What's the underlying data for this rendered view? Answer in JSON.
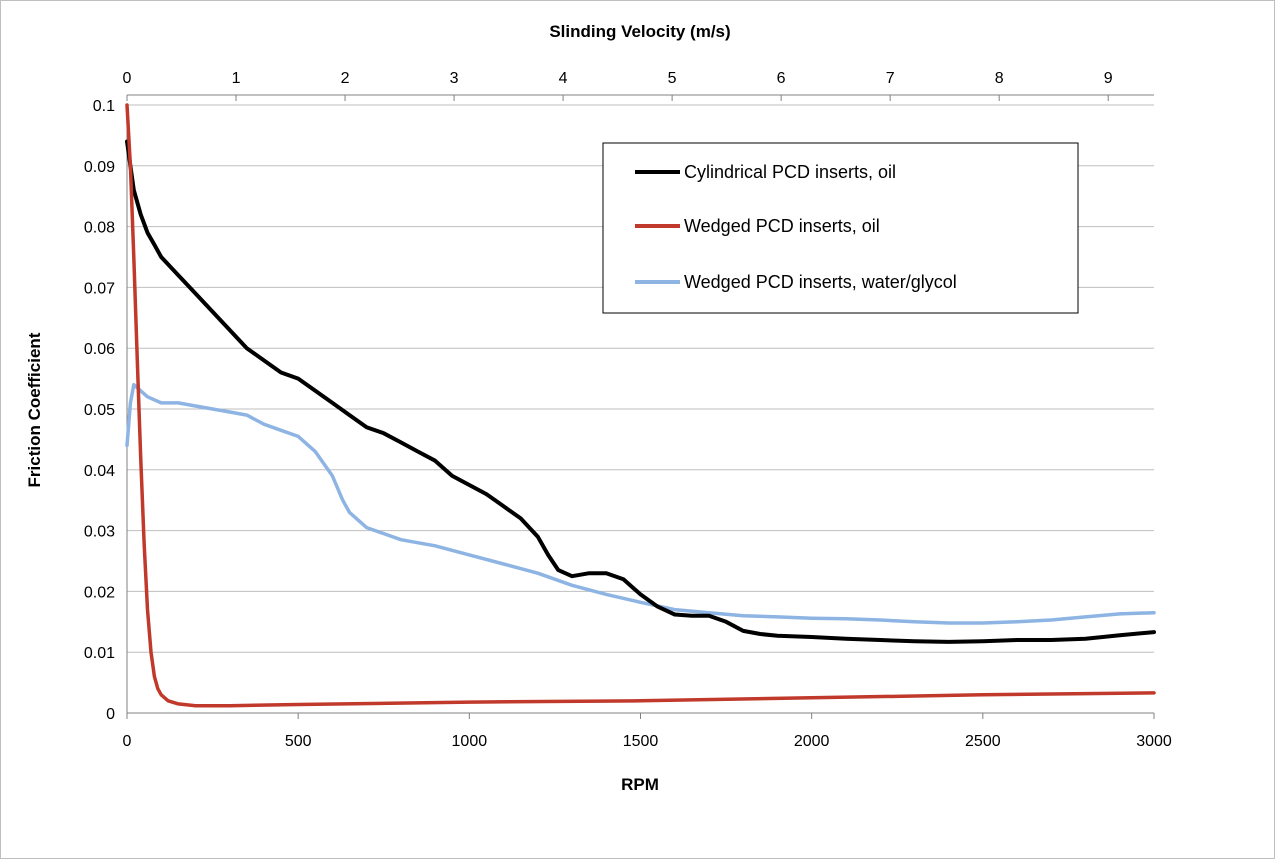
{
  "chart_data": {
    "type": "line",
    "title": "",
    "xlabel": "RPM",
    "ylabel": "Friction Coefficient",
    "x2label": "Slinding Velocity (m/s)",
    "xlim": [
      0,
      3000
    ],
    "ylim": [
      0,
      0.1
    ],
    "x2lim": [
      0,
      9.42
    ],
    "xticks": [
      "0",
      "500",
      "1000",
      "1500",
      "2000",
      "2500",
      "3000"
    ],
    "yticks": [
      "0",
      "0.01",
      "0.02",
      "0.03",
      "0.04",
      "0.05",
      "0.06",
      "0.07",
      "0.08",
      "0.09",
      "0.1"
    ],
    "x2ticks": [
      "0",
      "1",
      "2",
      "3",
      "4",
      "5",
      "6",
      "7",
      "8",
      "9"
    ],
    "grid": "horizontal",
    "legend_position": "top-right",
    "series": [
      {
        "name": "Cylindrical PCD inserts, oil",
        "color": "#000000",
        "x": [
          0,
          10,
          20,
          40,
          60,
          80,
          100,
          150,
          200,
          250,
          300,
          350,
          400,
          450,
          500,
          550,
          600,
          650,
          700,
          750,
          800,
          850,
          900,
          950,
          1000,
          1050,
          1100,
          1150,
          1200,
          1230,
          1260,
          1300,
          1350,
          1400,
          1450,
          1500,
          1550,
          1600,
          1650,
          1700,
          1750,
          1800,
          1850,
          1900,
          2000,
          2100,
          2200,
          2300,
          2400,
          2500,
          2600,
          2700,
          2800,
          2900,
          3000
        ],
        "y": [
          0.094,
          0.09,
          0.086,
          0.082,
          0.079,
          0.077,
          0.075,
          0.072,
          0.069,
          0.066,
          0.063,
          0.06,
          0.058,
          0.056,
          0.055,
          0.053,
          0.051,
          0.049,
          0.047,
          0.046,
          0.0445,
          0.043,
          0.0415,
          0.039,
          0.0375,
          0.036,
          0.034,
          0.032,
          0.029,
          0.026,
          0.0235,
          0.0225,
          0.023,
          0.023,
          0.022,
          0.0195,
          0.0175,
          0.0162,
          0.016,
          0.016,
          0.015,
          0.0135,
          0.013,
          0.0127,
          0.0125,
          0.0122,
          0.012,
          0.0118,
          0.0117,
          0.0118,
          0.012,
          0.012,
          0.0122,
          0.0128,
          0.0133
        ]
      },
      {
        "name": "Wedged PCD inserts, oil",
        "color": "#c0392b",
        "x": [
          0,
          5,
          10,
          20,
          30,
          40,
          50,
          60,
          70,
          80,
          90,
          100,
          120,
          150,
          200,
          300,
          500,
          1000,
          1500,
          2000,
          2500,
          3000
        ],
        "y": [
          0.1,
          0.095,
          0.09,
          0.075,
          0.058,
          0.042,
          0.028,
          0.017,
          0.01,
          0.006,
          0.004,
          0.003,
          0.002,
          0.0015,
          0.0012,
          0.0012,
          0.0014,
          0.0018,
          0.002,
          0.0025,
          0.003,
          0.0033
        ]
      },
      {
        "name": "Wedged PCD inserts, water/glycol",
        "color": "#8db4e2",
        "x": [
          0,
          10,
          20,
          40,
          60,
          100,
          150,
          200,
          250,
          300,
          350,
          400,
          450,
          500,
          550,
          600,
          630,
          650,
          700,
          750,
          800,
          900,
          1000,
          1100,
          1200,
          1300,
          1400,
          1500,
          1600,
          1700,
          1800,
          1900,
          2000,
          2100,
          2200,
          2300,
          2400,
          2500,
          2600,
          2700,
          2800,
          2900,
          3000
        ],
        "y": [
          0.044,
          0.051,
          0.054,
          0.053,
          0.052,
          0.051,
          0.051,
          0.0505,
          0.05,
          0.0495,
          0.049,
          0.0475,
          0.0465,
          0.0455,
          0.043,
          0.039,
          0.035,
          0.033,
          0.0305,
          0.0295,
          0.0285,
          0.0275,
          0.026,
          0.0245,
          0.023,
          0.021,
          0.0195,
          0.0182,
          0.017,
          0.0165,
          0.016,
          0.0158,
          0.0156,
          0.0155,
          0.0153,
          0.015,
          0.0148,
          0.0148,
          0.015,
          0.0153,
          0.0158,
          0.0163,
          0.0165
        ]
      }
    ]
  }
}
